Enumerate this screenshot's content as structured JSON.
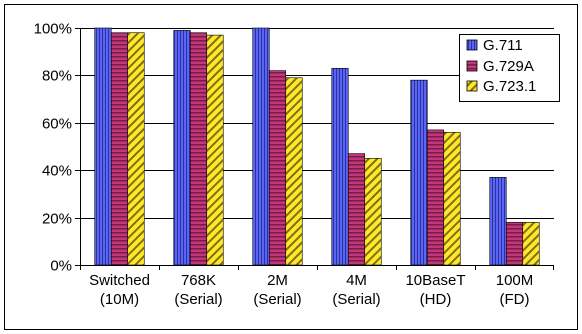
{
  "chart_data": {
    "type": "bar",
    "categories": [
      [
        "Switched",
        "(10M)"
      ],
      [
        "768K",
        "(Serial)"
      ],
      [
        "2M",
        "(Serial)"
      ],
      [
        "4M",
        "(Serial)"
      ],
      [
        "10BaseT",
        "(HD)"
      ],
      [
        "100M",
        "(FD)"
      ]
    ],
    "series": [
      {
        "name": "G.711",
        "values": [
          100,
          99,
          100,
          83,
          78,
          37
        ],
        "color": "#4A55E0",
        "pattern": "vertical-stripes"
      },
      {
        "name": "G.729A",
        "values": [
          98,
          98,
          82,
          47,
          57,
          18
        ],
        "color": "#B0306E",
        "pattern": "horizontal-stripes"
      },
      {
        "name": "G.723.1",
        "values": [
          98,
          97,
          79,
          45,
          56,
          18
        ],
        "color": "#F2E21E",
        "pattern": "diagonal-stripes"
      }
    ],
    "yticks": [
      "0%",
      "20%",
      "40%",
      "60%",
      "80%",
      "100%"
    ],
    "ylim": [
      0,
      100
    ],
    "title": "",
    "xlabel": "",
    "ylabel": "",
    "legend": "top-right",
    "grid": true
  }
}
